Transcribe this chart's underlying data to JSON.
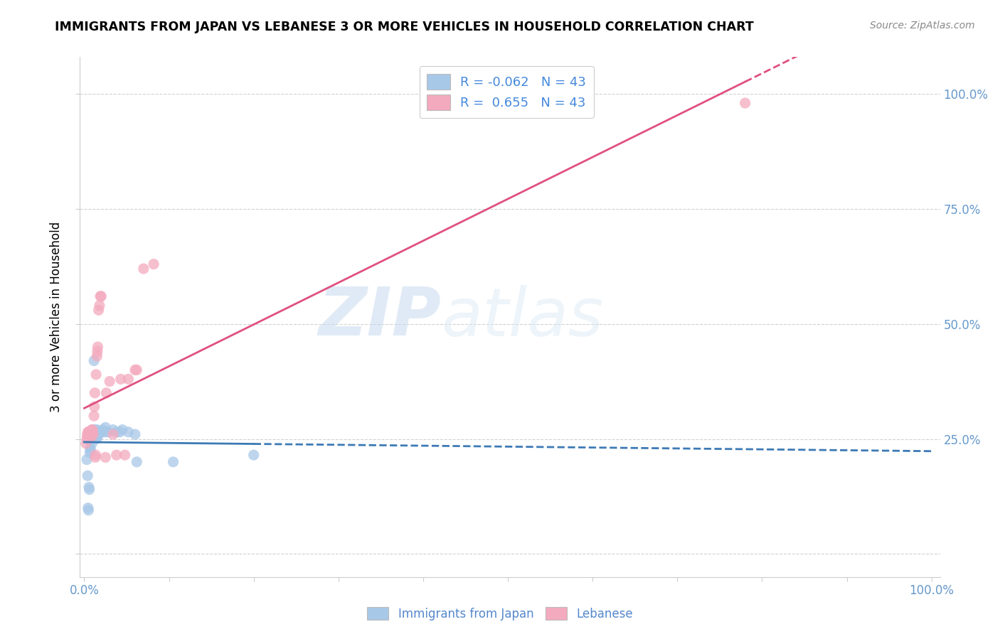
{
  "title": "IMMIGRANTS FROM JAPAN VS LEBANESE 3 OR MORE VEHICLES IN HOUSEHOLD CORRELATION CHART",
  "source": "Source: ZipAtlas.com",
  "ylabel": "3 or more Vehicles in Household",
  "watermark_zip": "ZIP",
  "watermark_atlas": "atlas",
  "legend_r_japan": "-0.062",
  "legend_n_japan": "43",
  "legend_r_lebanese": "0.655",
  "legend_n_lebanese": "43",
  "japan_color": "#a8c8e8",
  "lebanese_color": "#f4aabe",
  "japan_line_color": "#3d7ab5",
  "lebanese_line_color": "#e05080",
  "tick_color": "#6699cc",
  "grid_color": "#cccccc",
  "japan_scatter": [
    [
      0.003,
      0.205
    ],
    [
      0.004,
      0.17
    ],
    [
      0.0045,
      0.1
    ],
    [
      0.005,
      0.095
    ],
    [
      0.0055,
      0.145
    ],
    [
      0.006,
      0.14
    ],
    [
      0.0065,
      0.22
    ],
    [
      0.007,
      0.23
    ],
    [
      0.0075,
      0.225
    ],
    [
      0.008,
      0.255
    ],
    [
      0.0085,
      0.25
    ],
    [
      0.009,
      0.24
    ],
    [
      0.009,
      0.265
    ],
    [
      0.0095,
      0.27
    ],
    [
      0.01,
      0.265
    ],
    [
      0.01,
      0.26
    ],
    [
      0.0105,
      0.265
    ],
    [
      0.011,
      0.265
    ],
    [
      0.011,
      0.26
    ],
    [
      0.0115,
      0.42
    ],
    [
      0.012,
      0.27
    ],
    [
      0.012,
      0.265
    ],
    [
      0.0125,
      0.26
    ],
    [
      0.013,
      0.255
    ],
    [
      0.014,
      0.255
    ],
    [
      0.0145,
      0.25
    ],
    [
      0.015,
      0.27
    ],
    [
      0.016,
      0.255
    ],
    [
      0.0165,
      0.26
    ],
    [
      0.02,
      0.265
    ],
    [
      0.022,
      0.27
    ],
    [
      0.024,
      0.265
    ],
    [
      0.025,
      0.275
    ],
    [
      0.028,
      0.265
    ],
    [
      0.034,
      0.27
    ],
    [
      0.038,
      0.265
    ],
    [
      0.042,
      0.265
    ],
    [
      0.045,
      0.27
    ],
    [
      0.052,
      0.265
    ],
    [
      0.06,
      0.26
    ],
    [
      0.062,
      0.2
    ],
    [
      0.105,
      0.2
    ],
    [
      0.2,
      0.215
    ]
  ],
  "lebanese_scatter": [
    [
      0.002,
      0.24
    ],
    [
      0.003,
      0.25
    ],
    [
      0.0035,
      0.26
    ],
    [
      0.004,
      0.255
    ],
    [
      0.0045,
      0.265
    ],
    [
      0.005,
      0.265
    ],
    [
      0.0055,
      0.265
    ],
    [
      0.006,
      0.26
    ],
    [
      0.0065,
      0.265
    ],
    [
      0.007,
      0.255
    ],
    [
      0.0075,
      0.26
    ],
    [
      0.008,
      0.26
    ],
    [
      0.0085,
      0.255
    ],
    [
      0.009,
      0.27
    ],
    [
      0.0095,
      0.27
    ],
    [
      0.01,
      0.265
    ],
    [
      0.0105,
      0.26
    ],
    [
      0.0115,
      0.3
    ],
    [
      0.012,
      0.32
    ],
    [
      0.0125,
      0.35
    ],
    [
      0.013,
      0.21
    ],
    [
      0.0135,
      0.215
    ],
    [
      0.014,
      0.39
    ],
    [
      0.015,
      0.43
    ],
    [
      0.0155,
      0.44
    ],
    [
      0.016,
      0.45
    ],
    [
      0.017,
      0.53
    ],
    [
      0.018,
      0.54
    ],
    [
      0.019,
      0.56
    ],
    [
      0.02,
      0.56
    ],
    [
      0.025,
      0.21
    ],
    [
      0.026,
      0.35
    ],
    [
      0.03,
      0.375
    ],
    [
      0.034,
      0.26
    ],
    [
      0.038,
      0.215
    ],
    [
      0.043,
      0.38
    ],
    [
      0.048,
      0.215
    ],
    [
      0.052,
      0.38
    ],
    [
      0.06,
      0.4
    ],
    [
      0.062,
      0.4
    ],
    [
      0.07,
      0.62
    ],
    [
      0.082,
      0.63
    ],
    [
      0.78,
      0.98
    ]
  ],
  "xlim": [
    0.0,
    1.0
  ],
  "ylim": [
    0.0,
    1.05
  ],
  "xticks": [
    0.0,
    0.1,
    0.2,
    0.3,
    0.4,
    0.5,
    0.6,
    0.7,
    0.8,
    0.9,
    1.0
  ],
  "yticks": [
    0.0,
    0.25,
    0.5,
    0.75,
    1.0
  ]
}
